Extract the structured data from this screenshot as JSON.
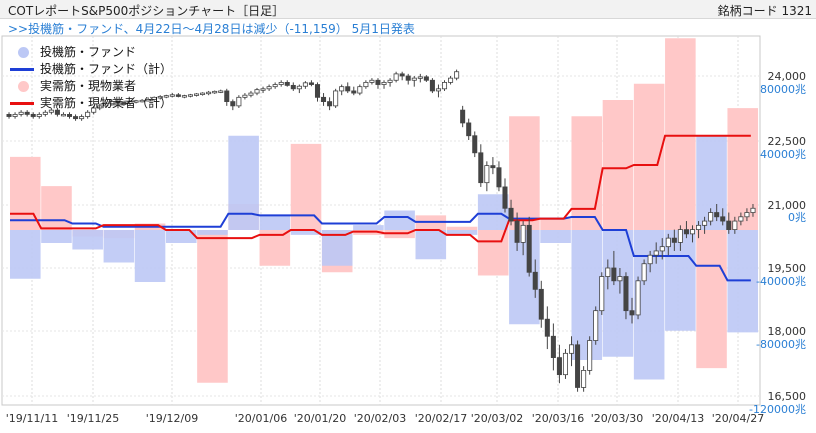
{
  "header": {
    "title": "COTレポートS&P500ポジションチャート［日足］",
    "code": "銘柄コード 1321",
    "note": ">>投機筋・ファンド、4月22日～4月28日は減少（-11,159） 5月1日発表"
  },
  "chart_data": {
    "type": "bar",
    "title": "COTレポートS&P500ポジションチャート［日足］",
    "x_ticks": [
      "'19/11/11",
      "'19/11/25",
      "'19/12/09",
      "'20/01/06",
      "'20/01/20",
      "'20/02/03",
      "'20/02/17",
      "'20/03/02",
      "'20/03/16",
      "'20/03/30",
      "'20/04/13",
      "'20/04/27"
    ],
    "y_right_price_ticks": [
      "24,000",
      "22,500",
      "21,000",
      "19,500",
      "18,000",
      "16,500"
    ],
    "y_right_position_ticks": [
      "80000兆",
      "40000兆",
      "0兆",
      "-40000兆",
      "-80000兆",
      "-120000兆"
    ],
    "price_range": [
      16300,
      24500
    ],
    "position_range": [
      -124000,
      116000
    ],
    "legend": [
      "投機筋・ファンド",
      "投機筋・ファンド（計）",
      "実需筋・現物業者",
      "実需筋・現物業者（計）"
    ],
    "colors": {
      "spec_bar": "#bcc8f5",
      "spec_line": "#1e3fd6",
      "comm_bar": "#ffc8c8",
      "comm_line": "#e81010",
      "candle": "#444444"
    },
    "weekly": [
      {
        "x": 0,
        "spec": -30000,
        "comm": 45000,
        "spec_cum": 6000,
        "comm_cum": 10000
      },
      {
        "x": 1,
        "spec": -8000,
        "comm": 27000,
        "spec_cum": 6000,
        "comm_cum": 1000
      },
      {
        "x": 2,
        "spec": -12000,
        "comm": -4000,
        "spec_cum": 4000,
        "comm_cum": 1000
      },
      {
        "x": 3,
        "spec": -20000,
        "comm": -5000,
        "spec_cum": 2000,
        "comm_cum": 3000
      },
      {
        "x": 4,
        "spec": -32000,
        "comm": 4000,
        "spec_cum": 2000,
        "comm_cum": 3000
      },
      {
        "x": 5,
        "spec": -8000,
        "comm": 0,
        "spec_cum": 2000,
        "comm_cum": 0
      },
      {
        "x": 6,
        "spec": -3000,
        "comm": -94000,
        "spec_cum": 2000,
        "comm_cum": -5000
      },
      {
        "x": 7,
        "spec": 58000,
        "comm": 16000,
        "spec_cum": 10000,
        "comm_cum": -5000
      },
      {
        "x": 8,
        "spec": 9000,
        "comm": -22000,
        "spec_cum": 9000,
        "comm_cum": -3000
      },
      {
        "x": 9,
        "spec": -3000,
        "comm": 53000,
        "spec_cum": 9000,
        "comm_cum": 0
      },
      {
        "x": 10,
        "spec": -22000,
        "comm": -26000,
        "spec_cum": 4000,
        "comm_cum": -3000
      },
      {
        "x": 11,
        "spec": 3000,
        "comm": -3000,
        "spec_cum": 4000,
        "comm_cum": -1000
      },
      {
        "x": 12,
        "spec": 12000,
        "comm": -5000,
        "spec_cum": 8000,
        "comm_cum": -2000
      },
      {
        "x": 13,
        "spec": -18000,
        "comm": 9000,
        "spec_cum": 5000,
        "comm_cum": 0
      },
      {
        "x": 14,
        "spec": -3000,
        "comm": 2000,
        "spec_cum": 5000,
        "comm_cum": -3000
      },
      {
        "x": 15,
        "spec": 22000,
        "comm": -28000,
        "spec_cum": 10000,
        "comm_cum": -7000
      },
      {
        "x": 16,
        "spec": -58000,
        "comm": 70000,
        "spec_cum": 7000,
        "comm_cum": 6000
      },
      {
        "x": 17,
        "spec": -8000,
        "comm": 7000,
        "spec_cum": 7000,
        "comm_cum": 7000
      },
      {
        "x": 18,
        "spec": -80000,
        "comm": 70000,
        "spec_cum": 8000,
        "comm_cum": 13000
      },
      {
        "x": 19,
        "spec": -78000,
        "comm": 80000,
        "spec_cum": 0,
        "comm_cum": 38000
      },
      {
        "x": 20,
        "spec": -92000,
        "comm": 90000,
        "spec_cum": -16000,
        "comm_cum": 40000
      },
      {
        "x": 21,
        "spec": -62000,
        "comm": 118000,
        "spec_cum": -16000,
        "comm_cum": 58000
      },
      {
        "x": 22,
        "spec": 58000,
        "comm": -85000,
        "spec_cum": -22000,
        "comm_cum": 58000
      },
      {
        "x": 23,
        "spec": -63000,
        "comm": 75000,
        "spec_cum": -31000,
        "comm_cum": 58000
      }
    ],
    "candles": [
      [
        23100,
        23150,
        23000,
        23050
      ],
      [
        23050,
        23150,
        23000,
        23100
      ],
      [
        23100,
        23200,
        23050,
        23150
      ],
      [
        23150,
        23200,
        23050,
        23100
      ],
      [
        23100,
        23150,
        23000,
        23050
      ],
      [
        23050,
        23150,
        23000,
        23100
      ],
      [
        23100,
        23200,
        23050,
        23150
      ],
      [
        23150,
        23250,
        23100,
        23200
      ],
      [
        23200,
        23250,
        23050,
        23100
      ],
      [
        23100,
        23150,
        23050,
        23100
      ],
      [
        23100,
        23150,
        23000,
        23050
      ],
      [
        23050,
        23100,
        22950,
        23000
      ],
      [
        23000,
        23100,
        22950,
        23050
      ],
      [
        23050,
        23200,
        23000,
        23150
      ],
      [
        23150,
        23300,
        23100,
        23250
      ],
      [
        23250,
        23350,
        23200,
        23300
      ],
      [
        23300,
        23400,
        23250,
        23350
      ],
      [
        23350,
        23450,
        23300,
        23400
      ],
      [
        23400,
        23450,
        23350,
        23380
      ],
      [
        23380,
        23420,
        23300,
        23360
      ],
      [
        23360,
        23420,
        23320,
        23400
      ],
      [
        23400,
        23440,
        23360,
        23420
      ],
      [
        23420,
        23460,
        23380,
        23430
      ],
      [
        23430,
        23500,
        23400,
        23450
      ],
      [
        23450,
        23520,
        23420,
        23500
      ],
      [
        23500,
        23550,
        23450,
        23520
      ],
      [
        23520,
        23560,
        23480,
        23540
      ],
      [
        23540,
        23600,
        23500,
        23560
      ],
      [
        23560,
        23600,
        23500,
        23520
      ],
      [
        23520,
        23560,
        23480,
        23540
      ],
      [
        23540,
        23580,
        23500,
        23560
      ],
      [
        23560,
        23600,
        23520,
        23580
      ],
      [
        23580,
        23620,
        23540,
        23600
      ],
      [
        23600,
        23650,
        23550,
        23620
      ],
      [
        23620,
        23660,
        23580,
        23640
      ],
      [
        23640,
        23680,
        23600,
        23650
      ],
      [
        23650,
        23700,
        23300,
        23400
      ],
      [
        23400,
        23450,
        23200,
        23300
      ],
      [
        23300,
        23550,
        23250,
        23500
      ],
      [
        23500,
        23600,
        23450,
        23550
      ],
      [
        23550,
        23650,
        23500,
        23600
      ],
      [
        23600,
        23720,
        23550,
        23680
      ],
      [
        23680,
        23750,
        23600,
        23700
      ],
      [
        23700,
        23800,
        23650,
        23750
      ],
      [
        23750,
        23850,
        23700,
        23800
      ],
      [
        23800,
        23900,
        23750,
        23850
      ],
      [
        23850,
        23900,
        23750,
        23780
      ],
      [
        23780,
        23850,
        23650,
        23700
      ],
      [
        23700,
        23800,
        23600,
        23760
      ],
      [
        23760,
        23880,
        23700,
        23840
      ],
      [
        23840,
        23900,
        23760,
        23800
      ],
      [
        23800,
        23850,
        23400,
        23500
      ],
      [
        23500,
        23600,
        23300,
        23400
      ],
      [
        23400,
        23500,
        23200,
        23300
      ],
      [
        23300,
        23700,
        23250,
        23650
      ],
      [
        23650,
        23800,
        23550,
        23750
      ],
      [
        23750,
        23850,
        23600,
        23650
      ],
      [
        23650,
        23750,
        23550,
        23600
      ],
      [
        23600,
        23800,
        23550,
        23750
      ],
      [
        23750,
        23900,
        23700,
        23850
      ],
      [
        23850,
        23950,
        23800,
        23900
      ],
      [
        23900,
        23950,
        23700,
        23800
      ],
      [
        23800,
        23900,
        23700,
        23850
      ],
      [
        23850,
        23950,
        23750,
        23900
      ],
      [
        23900,
        24100,
        23850,
        24050
      ],
      [
        24050,
        24100,
        23900,
        24000
      ],
      [
        24000,
        24050,
        23800,
        23900
      ],
      [
        23900,
        24000,
        23750,
        23950
      ],
      [
        23950,
        24050,
        23850,
        23980
      ],
      [
        23980,
        24020,
        23860,
        23900
      ],
      [
        23900,
        23950,
        23600,
        23650
      ],
      [
        23650,
        23800,
        23500,
        23700
      ],
      [
        23700,
        23900,
        23650,
        23850
      ],
      [
        23850,
        24000,
        23800,
        23950
      ],
      [
        23950,
        24150,
        23900,
        24100
      ],
      [
        23200,
        23300,
        22800,
        22900
      ],
      [
        22900,
        23000,
        22500,
        22600
      ],
      [
        22600,
        22700,
        22100,
        22200
      ],
      [
        22200,
        22400,
        21400,
        21500
      ],
      [
        21500,
        22000,
        21300,
        21900
      ],
      [
        21900,
        22100,
        21700,
        21850
      ],
      [
        21850,
        22000,
        21300,
        21400
      ],
      [
        21400,
        21600,
        20800,
        20900
      ],
      [
        20900,
        21100,
        20500,
        20600
      ],
      [
        20600,
        20800,
        19900,
        20100
      ],
      [
        20100,
        20600,
        19800,
        20500
      ],
      [
        20500,
        20700,
        19300,
        19400
      ],
      [
        19400,
        19700,
        18800,
        19000
      ],
      [
        19000,
        19200,
        18100,
        18300
      ],
      [
        18300,
        18600,
        17600,
        17900
      ],
      [
        17900,
        18200,
        17100,
        17400
      ],
      [
        17400,
        17700,
        16800,
        17000
      ],
      [
        17000,
        17600,
        16900,
        17500
      ],
      [
        17500,
        17900,
        17200,
        17700
      ],
      [
        17700,
        17800,
        16600,
        16700
      ],
      [
        16700,
        17200,
        16600,
        17100
      ],
      [
        17100,
        17900,
        17000,
        17800
      ],
      [
        17800,
        18600,
        17700,
        18500
      ],
      [
        18500,
        19400,
        18400,
        19300
      ],
      [
        19300,
        19700,
        19000,
        19500
      ],
      [
        19500,
        19900,
        19100,
        19200
      ],
      [
        19200,
        19500,
        18900,
        19300
      ],
      [
        19300,
        19400,
        18300,
        18500
      ],
      [
        18500,
        18800,
        18200,
        18400
      ],
      [
        18400,
        19300,
        18300,
        19200
      ],
      [
        19200,
        19700,
        19100,
        19600
      ],
      [
        19600,
        19900,
        19400,
        19800
      ],
      [
        19800,
        20100,
        19600,
        19900
      ],
      [
        19900,
        20200,
        19700,
        20000
      ],
      [
        20000,
        20300,
        19800,
        20200
      ],
      [
        20200,
        20400,
        19900,
        20100
      ],
      [
        20100,
        20500,
        19900,
        20400
      ],
      [
        20400,
        20600,
        20200,
        20300
      ],
      [
        20300,
        20500,
        20100,
        20400
      ],
      [
        20400,
        20600,
        20200,
        20500
      ],
      [
        20500,
        20700,
        20300,
        20600
      ],
      [
        20600,
        20900,
        20500,
        20800
      ],
      [
        20800,
        21000,
        20600,
        20700
      ],
      [
        20700,
        20900,
        20500,
        20600
      ],
      [
        20600,
        20800,
        20300,
        20400
      ],
      [
        20400,
        20700,
        20300,
        20600
      ],
      [
        20600,
        20800,
        20500,
        20700
      ],
      [
        20700,
        20900,
        20600,
        20800
      ],
      [
        20800,
        21000,
        20700,
        20900
      ]
    ]
  }
}
